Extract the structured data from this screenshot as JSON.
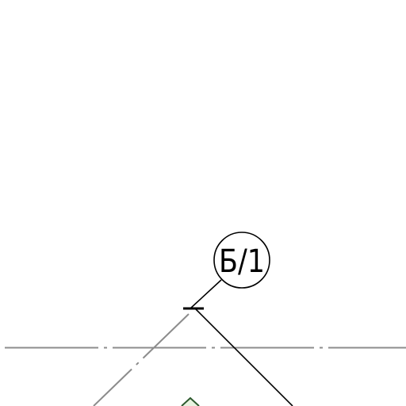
{
  "drawing": {
    "grid_marker_label": "Б/1",
    "colors": {
      "background": "#ffffff",
      "ink": "#000000",
      "axis_line": "#8c8c8c",
      "marker_fill": "#e8f3e0",
      "marker_stroke": "#2e5a2e"
    }
  }
}
